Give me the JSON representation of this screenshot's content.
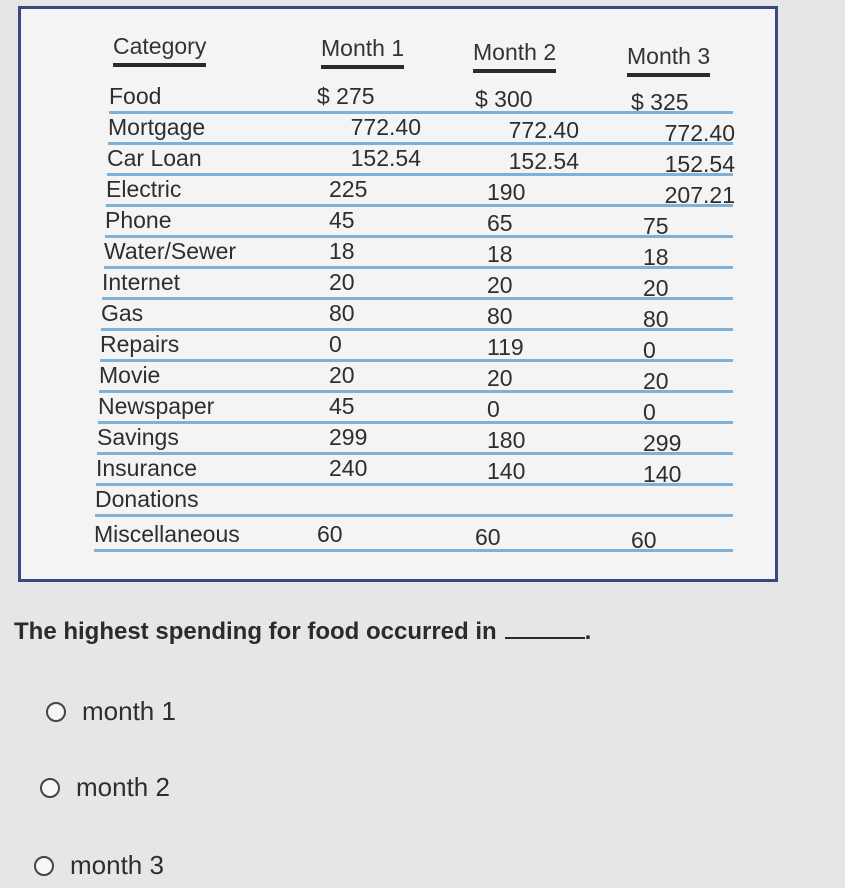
{
  "table": {
    "headers": [
      "Category",
      "Month 1",
      "Month 2",
      "Month 3"
    ],
    "rows": [
      {
        "category": "Food",
        "m1": "$ 275",
        "m2": "$ 300",
        "m3": "$ 325"
      },
      {
        "category": "Mortgage",
        "m1": "772.40",
        "m2": "772.40",
        "m3": "772.40"
      },
      {
        "category": "Car Loan",
        "m1": "152.54",
        "m2": "152.54",
        "m3": "152.54"
      },
      {
        "category": "Electric",
        "m1": "225",
        "m2": "190",
        "m3": "207.21"
      },
      {
        "category": "Phone",
        "m1": "45",
        "m2": "65",
        "m3": "75"
      },
      {
        "category": "Water/Sewer",
        "m1": "18",
        "m2": "18",
        "m3": "18"
      },
      {
        "category": "Internet",
        "m1": "20",
        "m2": "20",
        "m3": "20"
      },
      {
        "category": "Gas",
        "m1": "80",
        "m2": "80",
        "m3": "80"
      },
      {
        "category": "Repairs",
        "m1": "0",
        "m2": "119",
        "m3": "0"
      },
      {
        "category": "Movie",
        "m1": "20",
        "m2": "20",
        "m3": "20"
      },
      {
        "category": "Newspaper",
        "m1": "45",
        "m2": "0",
        "m3": "0"
      },
      {
        "category": "Savings",
        "m1": "299",
        "m2": "180",
        "m3": "299"
      },
      {
        "category": "Insurance",
        "m1": "240",
        "m2": "140",
        "m3": "140"
      },
      {
        "category": "Donations",
        "m1": "",
        "m2": "",
        "m3": ""
      },
      {
        "category": "Miscellaneous",
        "m1": "60",
        "m2": "60",
        "m3": "60"
      }
    ]
  },
  "question": {
    "text": "The highest spending for food occurred in",
    "end_mark": "."
  },
  "options": [
    {
      "label": "month 1"
    },
    {
      "label": "month 2"
    },
    {
      "label": "month 3"
    }
  ],
  "colors": {
    "panel_border": "#3a4a80",
    "row_line": "#7fb1d6",
    "background": "#e6e6e8"
  }
}
